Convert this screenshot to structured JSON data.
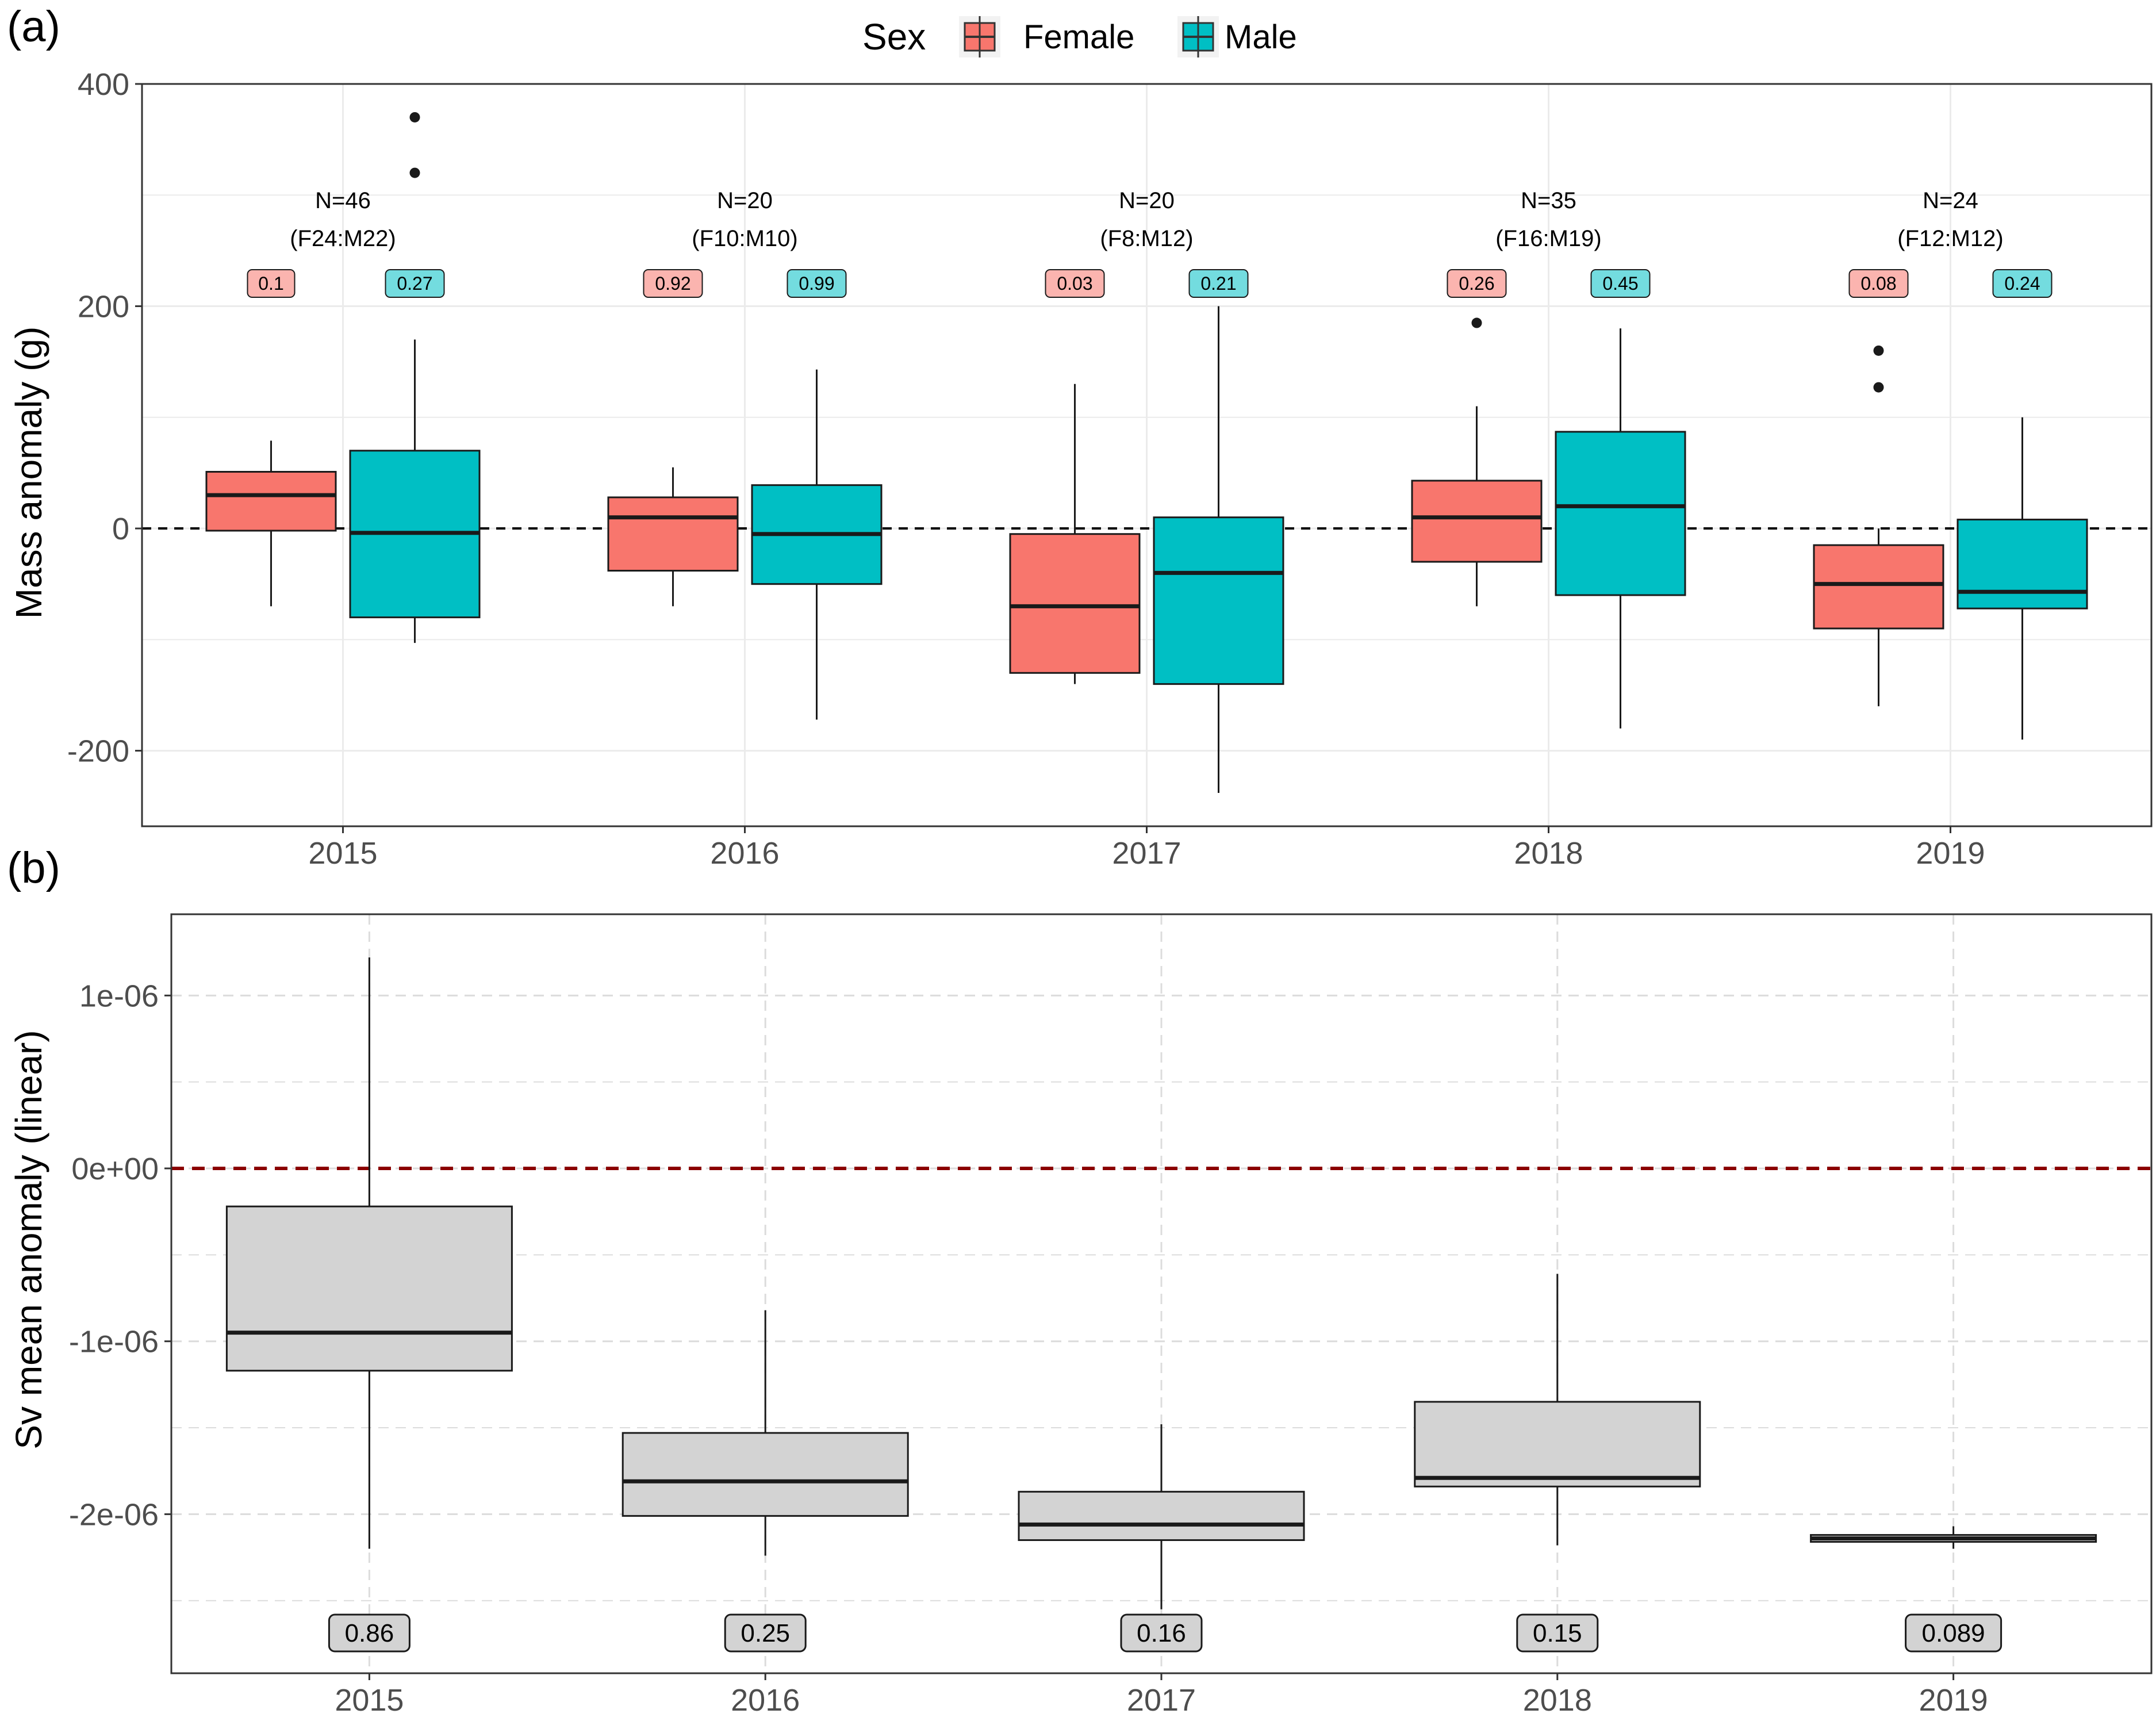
{
  "panel_a": {
    "tag": "(a)",
    "legend": {
      "title": "Sex",
      "entries": [
        {
          "label": "Female",
          "color": "#F8766D"
        },
        {
          "label": "Male",
          "color": "#00BFC4"
        }
      ]
    },
    "ylabel": "Mass anomaly (g)",
    "annotations": [
      {
        "year": "2015",
        "n": "N=46",
        "split": "(F24:M22)"
      },
      {
        "year": "2016",
        "n": "N=20",
        "split": "(F10:M10)"
      },
      {
        "year": "2017",
        "n": "N=20",
        "split": "(F8:M12)"
      },
      {
        "year": "2018",
        "n": "N=35",
        "split": "(F16:M19)"
      },
      {
        "year": "2019",
        "n": "N=24",
        "split": "(F12:M12)"
      }
    ]
  },
  "panel_b": {
    "tag": "(b)",
    "ylabel": "Sv mean anomaly (linear)",
    "reference_line_color": "#8B0000",
    "box_color": "#D3D3D3"
  },
  "chart_data": [
    {
      "type": "box",
      "categories": [
        "2015",
        "2016",
        "2017",
        "2018",
        "2019"
      ],
      "ylabel": "Mass anomaly (g)",
      "ylim": [
        -268,
        400
      ],
      "yticks": [
        -200,
        0,
        200,
        400
      ],
      "ytick_labels": [
        "-200",
        "0",
        "200",
        "400"
      ],
      "reference_line": 0,
      "grid": true,
      "legend_position": "top",
      "series": [
        {
          "name": "Female",
          "color": "#F8766D",
          "boxes": [
            {
              "category": "2015",
              "whisker_low": -70,
              "q1": -2,
              "median": 30,
              "q3": 51,
              "whisker_high": 79,
              "outliers": [],
              "p_value": "0.1"
            },
            {
              "category": "2016",
              "whisker_low": -70,
              "q1": -38,
              "median": 10,
              "q3": 28,
              "whisker_high": 55,
              "outliers": [],
              "p_value": "0.92"
            },
            {
              "category": "2017",
              "whisker_low": -140,
              "q1": -130,
              "median": -70,
              "q3": -5,
              "whisker_high": 130,
              "outliers": [],
              "p_value": "0.03"
            },
            {
              "category": "2018",
              "whisker_low": -70,
              "q1": -30,
              "median": 10,
              "q3": 43,
              "whisker_high": 110,
              "outliers": [
                185
              ],
              "p_value": "0.26"
            },
            {
              "category": "2019",
              "whisker_low": -160,
              "q1": -90,
              "median": -50,
              "q3": -15,
              "whisker_high": 0,
              "outliers": [
                127,
                160
              ],
              "p_value": "0.08"
            }
          ]
        },
        {
          "name": "Male",
          "color": "#00BFC4",
          "boxes": [
            {
              "category": "2015",
              "whisker_low": -103,
              "q1": -80,
              "median": -4,
              "q3": 70,
              "whisker_high": 170,
              "outliers": [
                320,
                370
              ],
              "p_value": "0.27"
            },
            {
              "category": "2016",
              "whisker_low": -172,
              "q1": -50,
              "median": -5,
              "q3": 39,
              "whisker_high": 143,
              "outliers": [],
              "p_value": "0.99"
            },
            {
              "category": "2017",
              "whisker_low": -238,
              "q1": -140,
              "median": -40,
              "q3": 10,
              "whisker_high": 200,
              "outliers": [],
              "p_value": "0.21"
            },
            {
              "category": "2018",
              "whisker_low": -180,
              "q1": -60,
              "median": 20,
              "q3": 87,
              "whisker_high": 180,
              "outliers": [],
              "p_value": "0.45"
            },
            {
              "category": "2019",
              "whisker_low": -190,
              "q1": -72,
              "median": -57,
              "q3": 8,
              "whisker_high": 100,
              "outliers": [],
              "p_value": "0.24"
            }
          ]
        }
      ]
    },
    {
      "type": "box",
      "categories": [
        "2015",
        "2016",
        "2017",
        "2018",
        "2019"
      ],
      "ylabel": "Sv mean anomaly (linear)",
      "ylim": [
        -2.92e-06,
        1.47e-06
      ],
      "yticks": [
        -2e-06,
        -1e-06,
        0,
        1e-06
      ],
      "ytick_labels": [
        "-2e-06",
        "-1e-06",
        "0e+00",
        "1e-06"
      ],
      "reference_line": 0,
      "grid": true,
      "series": [
        {
          "color": "#D3D3D3",
          "boxes": [
            {
              "category": "2015",
              "whisker_low": -2.2e-06,
              "q1": -1.17e-06,
              "median": -9.5e-07,
              "q3": -2.2e-07,
              "whisker_high": 1.22e-06,
              "outliers": [],
              "p_value": "0.86"
            },
            {
              "category": "2016",
              "whisker_low": -2.24e-06,
              "q1": -2.01e-06,
              "median": -1.81e-06,
              "q3": -1.53e-06,
              "whisker_high": -8.2e-07,
              "outliers": [],
              "p_value": "0.25"
            },
            {
              "category": "2017",
              "whisker_low": -2.55e-06,
              "q1": -2.15e-06,
              "median": -2.06e-06,
              "q3": -1.87e-06,
              "whisker_high": -1.48e-06,
              "outliers": [],
              "p_value": "0.16"
            },
            {
              "category": "2018",
              "whisker_low": -2.18e-06,
              "q1": -1.84e-06,
              "median": -1.79e-06,
              "q3": -1.35e-06,
              "whisker_high": -6.1e-07,
              "outliers": [],
              "p_value": "0.15"
            },
            {
              "category": "2019",
              "whisker_low": -2.2e-06,
              "q1": -2.16e-06,
              "median": -2.14e-06,
              "q3": -2.12e-06,
              "whisker_high": -2.07e-06,
              "outliers": [],
              "p_value": "0.089"
            }
          ]
        }
      ]
    }
  ]
}
